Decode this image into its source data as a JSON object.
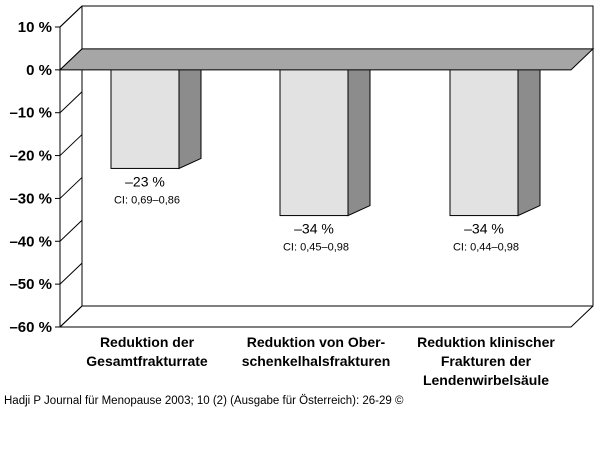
{
  "chart_data": {
    "type": "bar",
    "categories": [
      [
        "Reduktion der",
        "Gesamtfrakturrate"
      ],
      [
        "Reduktion von Ober-",
        "schenkelhalsfrakturen"
      ],
      [
        "Reduktion klinischer",
        "Frakturen der",
        "Lendenwirbelsäule"
      ]
    ],
    "values": [
      -23,
      -34,
      -34
    ],
    "value_labels": [
      "–23 %",
      "–34 %",
      "–34 %"
    ],
    "ci_labels": [
      "CI: 0,69–0,86",
      "CI: 0,45–0,98",
      "CI: 0,44–0,98"
    ],
    "y_ticks": [
      {
        "value": 10,
        "label": "10 %"
      },
      {
        "value": 0,
        "label": "0 %"
      },
      {
        "value": -10,
        "label": "–10 %"
      },
      {
        "value": -20,
        "label": "–20 %"
      },
      {
        "value": -30,
        "label": "–30 %"
      },
      {
        "value": -40,
        "label": "–40 %"
      },
      {
        "value": -50,
        "label": "–50 %"
      },
      {
        "value": -60,
        "label": "–60 %"
      }
    ],
    "ylim": [
      -60,
      10
    ],
    "grid": false,
    "colors": {
      "bar_front": "#e2e2e2",
      "bar_side": "#8c8c8c",
      "zero_plane": "#a6a6a6",
      "outline": "#000000"
    }
  },
  "citation": "Hadji P Journal für Menopause 2003; 10 (2) (Ausgabe für Österreich): 26-29 ©"
}
